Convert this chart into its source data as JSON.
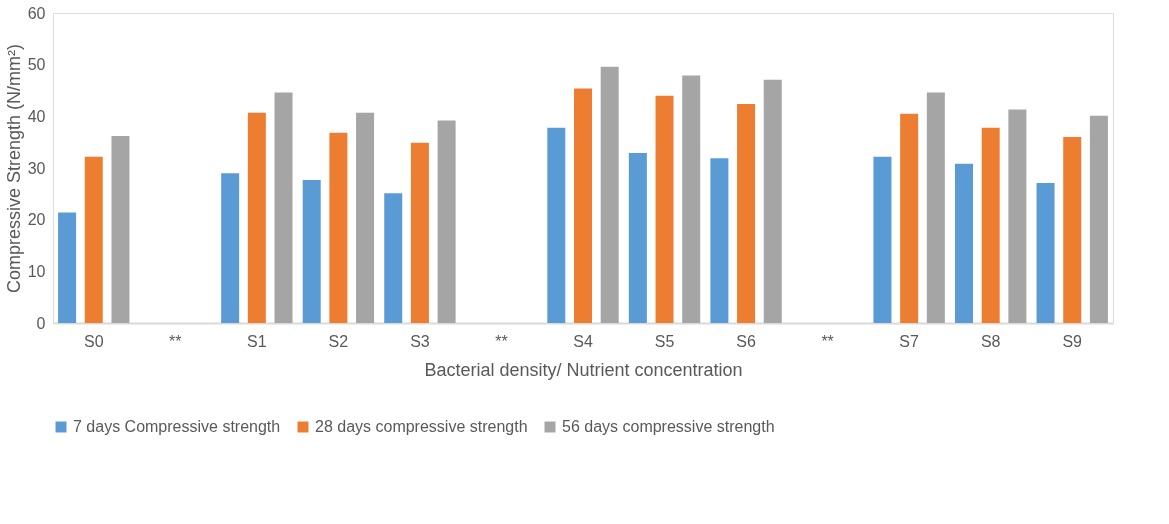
{
  "chart_data": {
    "type": "bar",
    "xlabel": "Bacterial density/ Nutrient concentration",
    "ylabel": "Compressive Strength (N/mm²)",
    "categories": [
      "S0",
      "**",
      "S1",
      "S2",
      "S3",
      "**",
      "S4",
      "S5",
      "S6",
      "**",
      "S7",
      "S8",
      "S9"
    ],
    "series": [
      {
        "name": "7 days Compressive strength",
        "color": "#5b9bd5",
        "values": [
          21.4,
          null,
          29.0,
          27.7,
          25.1,
          null,
          37.8,
          32.9,
          31.9,
          null,
          32.2,
          30.8,
          27.1
        ]
      },
      {
        "name": "28 days compressive strength",
        "color": "#ed7d31",
        "values": [
          32.2,
          null,
          40.7,
          36.8,
          34.9,
          null,
          45.4,
          44.0,
          42.4,
          null,
          40.5,
          37.8,
          36.0
        ]
      },
      {
        "name": "56 days compressive strength",
        "color": "#a5a5a5",
        "values": [
          36.2,
          null,
          44.6,
          40.7,
          39.2,
          null,
          49.6,
          47.9,
          47.1,
          null,
          44.6,
          41.3,
          40.1
        ]
      }
    ],
    "ylim": [
      0,
      60
    ],
    "yticks": [
      0,
      10,
      20,
      30,
      40,
      50,
      60
    ],
    "grid": false,
    "legend": "bottom"
  }
}
